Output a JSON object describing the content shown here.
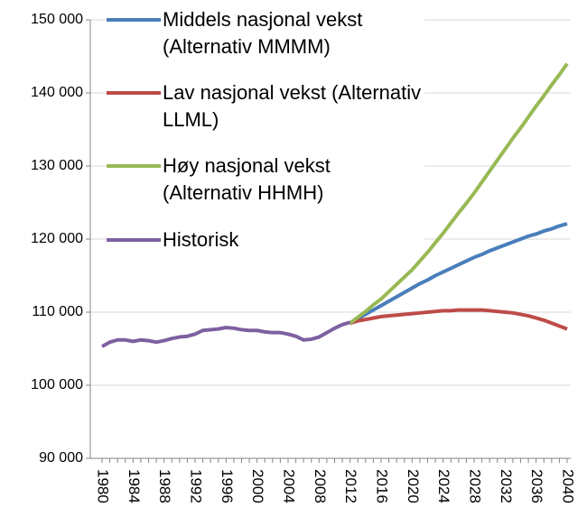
{
  "chart_data": {
    "type": "line",
    "x": [
      1980,
      1981,
      1982,
      1983,
      1984,
      1985,
      1986,
      1987,
      1988,
      1989,
      1990,
      1991,
      1992,
      1993,
      1994,
      1995,
      1996,
      1997,
      1998,
      1999,
      2000,
      2001,
      2002,
      2003,
      2004,
      2005,
      2006,
      2007,
      2008,
      2009,
      2010,
      2011,
      2012,
      2013,
      2014,
      2015,
      2016,
      2017,
      2018,
      2019,
      2020,
      2021,
      2022,
      2023,
      2024,
      2025,
      2026,
      2027,
      2028,
      2029,
      2030,
      2031,
      2032,
      2033,
      2034,
      2035,
      2036,
      2037,
      2038,
      2039,
      2040
    ],
    "series": [
      {
        "name": "Middels nasjonal vekst (Alternativ MMMM)",
        "color": "#4a7ebb",
        "values": [
          null,
          null,
          null,
          null,
          null,
          null,
          null,
          null,
          null,
          null,
          null,
          null,
          null,
          null,
          null,
          null,
          null,
          null,
          null,
          null,
          null,
          null,
          null,
          null,
          null,
          null,
          null,
          null,
          null,
          null,
          null,
          null,
          108500,
          109100,
          109700,
          110300,
          110900,
          111500,
          112100,
          112700,
          113300,
          113900,
          114400,
          115000,
          115500,
          116000,
          116500,
          117000,
          117500,
          117900,
          118400,
          118800,
          119200,
          119600,
          120000,
          120400,
          120700,
          121100,
          121400,
          121800,
          122100
        ]
      },
      {
        "name": "Lav nasjonal vekst (Alternativ LLML)",
        "color": "#be4b48",
        "values": [
          null,
          null,
          null,
          null,
          null,
          null,
          null,
          null,
          null,
          null,
          null,
          null,
          null,
          null,
          null,
          null,
          null,
          null,
          null,
          null,
          null,
          null,
          null,
          null,
          null,
          null,
          null,
          null,
          null,
          null,
          null,
          null,
          108500,
          108800,
          109000,
          109200,
          109400,
          109500,
          109600,
          109700,
          109800,
          109900,
          110000,
          110100,
          110200,
          110200,
          110300,
          110300,
          110300,
          110300,
          110200,
          110100,
          110000,
          109900,
          109700,
          109500,
          109200,
          108900,
          108500,
          108100,
          107700
        ]
      },
      {
        "name": "Høy nasjonal vekst (Alternativ HHMH)",
        "color": "#98b954",
        "values": [
          null,
          null,
          null,
          null,
          null,
          null,
          null,
          null,
          null,
          null,
          null,
          null,
          null,
          null,
          null,
          null,
          null,
          null,
          null,
          null,
          null,
          null,
          null,
          null,
          null,
          null,
          null,
          null,
          null,
          null,
          null,
          null,
          108500,
          109300,
          110100,
          111000,
          111800,
          112800,
          113800,
          114800,
          115800,
          117000,
          118200,
          119500,
          120800,
          122200,
          123600,
          124900,
          126300,
          127800,
          129300,
          130800,
          132300,
          133800,
          135200,
          136700,
          138200,
          139600,
          141100,
          142500,
          144000
        ]
      },
      {
        "name": "Historisk",
        "color": "#7d60a0",
        "values": [
          105300,
          105900,
          106200,
          106200,
          106000,
          106200,
          106100,
          105900,
          106100,
          106400,
          106600,
          106700,
          107000,
          107500,
          107600,
          107700,
          107900,
          107800,
          107600,
          107500,
          107500,
          107300,
          107200,
          107200,
          107000,
          106700,
          106200,
          106300,
          106600,
          107200,
          107800,
          108300,
          108600,
          null,
          null,
          null,
          null,
          null,
          null,
          null,
          null,
          null,
          null,
          null,
          null,
          null,
          null,
          null,
          null,
          null,
          null,
          null,
          null,
          null,
          null,
          null,
          null,
          null,
          null,
          null,
          null
        ]
      }
    ],
    "xlim": [
      1980,
      2040
    ],
    "xticks": [
      1980,
      1984,
      1988,
      1992,
      1996,
      2000,
      2004,
      2008,
      2012,
      2016,
      2020,
      2024,
      2028,
      2032,
      2036,
      2040
    ],
    "ylim": [
      90000,
      150000
    ],
    "yticks": [
      {
        "value": 90000,
        "label": "90 000"
      },
      {
        "value": 100000,
        "label": "100 000"
      },
      {
        "value": 110000,
        "label": "110 000"
      },
      {
        "value": 120000,
        "label": "120 000"
      },
      {
        "value": 130000,
        "label": "130 000"
      },
      {
        "value": 140000,
        "label": "140 000"
      },
      {
        "value": 150000,
        "label": "150 000"
      }
    ],
    "grid": true
  }
}
